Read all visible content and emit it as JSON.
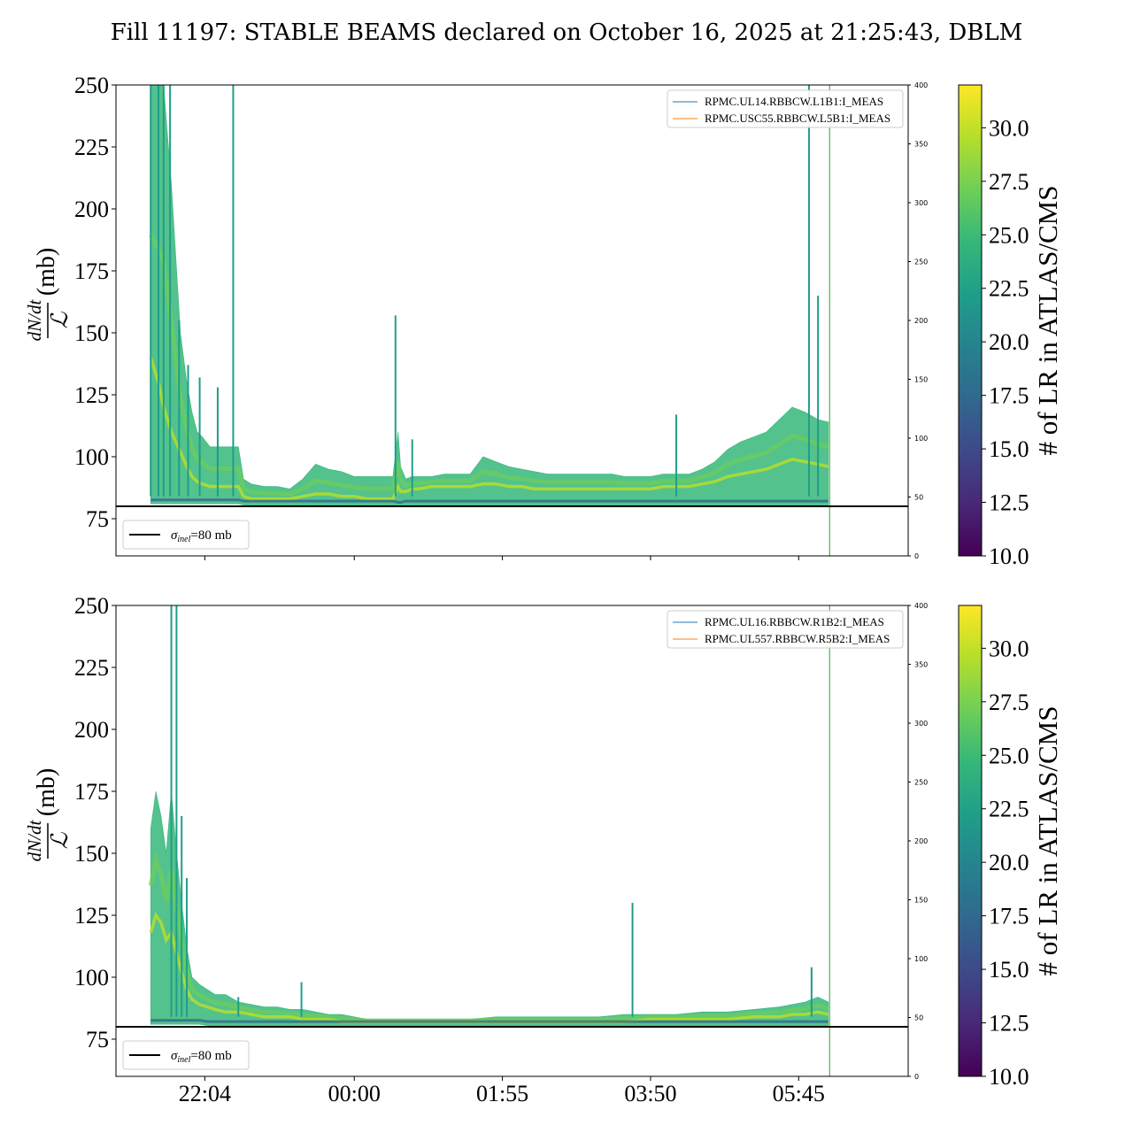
{
  "title": "Fill 11197: STABLE BEAMS declared on October 16, 2025 at 21:25:43, DBLM",
  "colors": {
    "reference_line": "#000000",
    "marker_line": "#2ca02c",
    "series_blue": "#1f77b4",
    "series_orange": "#ff7f0e",
    "viridis": [
      "#440154",
      "#482878",
      "#3e4989",
      "#31688e",
      "#26828e",
      "#1f9e89",
      "#35b779",
      "#6ece58",
      "#b5de2b",
      "#fde725"
    ]
  },
  "chart_data": [
    {
      "type": "line",
      "panel": "top",
      "ylabel_numerator": "dN/dt",
      "ylabel_denominator": "ℒ",
      "ylabel_unit": "(mb)",
      "ylim": [
        60,
        250
      ],
      "yticks": [
        75,
        100,
        125,
        150,
        175,
        200,
        225,
        250
      ],
      "y2lim": [
        0,
        400
      ],
      "y2ticks": [
        0,
        50,
        100,
        150,
        200,
        250,
        300,
        350,
        400
      ],
      "xlim_minutes": [
        -155,
        460
      ],
      "x_ticks": [
        {
          "label": "22:04",
          "minutes": -86
        },
        {
          "label": "00:00",
          "minutes": 30
        },
        {
          "label": "01:55",
          "minutes": 145
        },
        {
          "label": "03:50",
          "minutes": 260
        },
        {
          "label": "05:45",
          "minutes": 375
        }
      ],
      "show_xtick_labels": false,
      "reference": {
        "label_symbol": "σ",
        "label_sub": "inel",
        "label_value": "=80 mb",
        "y": 80
      },
      "marker_x_minutes": 399,
      "legend_placement": "upper right",
      "series": [
        {
          "name": "RPMC.UL14.RBBCW.L1B1:I_MEAS",
          "color": "#1f77b4"
        },
        {
          "name": "RPMC.USC55.RBBCW.L5B1:I_MEAS",
          "color": "#ff7f0e"
        }
      ],
      "band": {
        "x": [
          -128,
          -122,
          -118,
          -112,
          -105,
          -100,
          -96,
          -92,
          -88,
          -82,
          -76,
          -70,
          -64,
          -60,
          -56,
          -50,
          -40,
          -30,
          -20,
          -10,
          0,
          10,
          20,
          30,
          40,
          50,
          60,
          64,
          66,
          70,
          75,
          80,
          90,
          100,
          110,
          120,
          130,
          140,
          150,
          160,
          170,
          180,
          190,
          200,
          210,
          220,
          230,
          240,
          250,
          260,
          270,
          280,
          290,
          300,
          310,
          320,
          330,
          340,
          350,
          360,
          370,
          380,
          390,
          398
        ],
        "low": [
          81,
          81,
          81,
          81,
          81,
          81,
          81,
          81,
          81,
          81,
          81,
          81,
          81,
          81,
          80.5,
          80.5,
          80.5,
          80.5,
          80.5,
          80.5,
          80.5,
          80.5,
          80.5,
          80.5,
          80.5,
          80.5,
          80.5,
          80,
          80,
          80.5,
          80.5,
          80.5,
          80.5,
          80.5,
          80.5,
          80.5,
          80.5,
          80.5,
          80.5,
          80.5,
          80.5,
          80.5,
          80.5,
          80.5,
          80.5,
          80.5,
          80.5,
          80.5,
          80.5,
          80.5,
          80.5,
          80.5,
          80.5,
          80.5,
          80.5,
          80.5,
          80.5,
          80.5,
          80.5,
          80.5,
          80.5,
          80.5,
          80.5,
          80.5
        ],
        "high": [
          250,
          250,
          250,
          210,
          150,
          130,
          118,
          110,
          108,
          104,
          104,
          104,
          104,
          104,
          91,
          89,
          88,
          88,
          87,
          91,
          97,
          95,
          94,
          92,
          92,
          92,
          92,
          110,
          96,
          91,
          92,
          92,
          92,
          93,
          93,
          93,
          100,
          98,
          96,
          95,
          94,
          93,
          93,
          93,
          93,
          93,
          93,
          92,
          92,
          92,
          93,
          93,
          93,
          95,
          98,
          103,
          106,
          108,
          110,
          115,
          120,
          118,
          115,
          114
        ],
        "mid": [
          140,
          130,
          120,
          110,
          102,
          96,
          92,
          90,
          89,
          88,
          88,
          88,
          88,
          88,
          84,
          83,
          83,
          83,
          83,
          84,
          85,
          85,
          84,
          84,
          83,
          83,
          83,
          88,
          86,
          86,
          87,
          87,
          88,
          88,
          88,
          88,
          89,
          89,
          88,
          88,
          87,
          87,
          87,
          87,
          87,
          87,
          87,
          87,
          87,
          87,
          88,
          88,
          88,
          89,
          90,
          92,
          93,
          94,
          95,
          97,
          99,
          98,
          97,
          96
        ]
      },
      "spikes": [
        {
          "x": -128,
          "y": 250
        },
        {
          "x": -122,
          "y": 250
        },
        {
          "x": -118,
          "y": 250
        },
        {
          "x": -113,
          "y": 250
        },
        {
          "x": -106,
          "y": 155
        },
        {
          "x": -99,
          "y": 137
        },
        {
          "x": -90,
          "y": 132
        },
        {
          "x": -76,
          "y": 128
        },
        {
          "x": -64,
          "y": 250
        },
        {
          "x": 62,
          "y": 157
        },
        {
          "x": 75,
          "y": 107
        },
        {
          "x": 280,
          "y": 117
        },
        {
          "x": 383,
          "y": 250
        },
        {
          "x": 390,
          "y": 165
        }
      ]
    },
    {
      "type": "line",
      "panel": "bottom",
      "ylabel_numerator": "dN/dt",
      "ylabel_denominator": "ℒ",
      "ylabel_unit": "(mb)",
      "ylim": [
        60,
        250
      ],
      "yticks": [
        75,
        100,
        125,
        150,
        175,
        200,
        225,
        250
      ],
      "y2lim": [
        0,
        400
      ],
      "y2ticks": [
        0,
        50,
        100,
        150,
        200,
        250,
        300,
        350,
        400
      ],
      "xlim_minutes": [
        -155,
        460
      ],
      "x_ticks": [
        {
          "label": "22:04",
          "minutes": -86
        },
        {
          "label": "00:00",
          "minutes": 30
        },
        {
          "label": "01:55",
          "minutes": 145
        },
        {
          "label": "03:50",
          "minutes": 260
        },
        {
          "label": "05:45",
          "minutes": 375
        }
      ],
      "show_xtick_labels": true,
      "reference": {
        "label_symbol": "σ",
        "label_sub": "inel",
        "label_value": "=80 mb",
        "y": 80
      },
      "marker_x_minutes": 399,
      "legend_placement": "upper right",
      "series": [
        {
          "name": "RPMC.UL16.RBBCW.R1B2:I_MEAS",
          "color": "#1f77b4"
        },
        {
          "name": "RPMC.UL557.RBBCW.R5B2:I_MEAS",
          "color": "#ff7f0e"
        }
      ],
      "band": {
        "x": [
          -128,
          -124,
          -120,
          -116,
          -112,
          -108,
          -104,
          -100,
          -96,
          -90,
          -84,
          -78,
          -70,
          -60,
          -50,
          -40,
          -30,
          -20,
          -10,
          0,
          10,
          20,
          30,
          40,
          50,
          60,
          80,
          100,
          120,
          140,
          160,
          180,
          200,
          220,
          240,
          260,
          280,
          300,
          320,
          340,
          360,
          370,
          380,
          390,
          398
        ],
        "low": [
          81,
          81,
          81,
          81,
          81,
          81,
          81,
          81,
          81,
          81,
          80.5,
          80.5,
          80.5,
          80.5,
          80.5,
          80.5,
          80.5,
          80.5,
          80.5,
          80.5,
          80.5,
          80.5,
          80.5,
          80.5,
          80.5,
          80.5,
          80.5,
          80.5,
          80.5,
          80.5,
          80.5,
          80.5,
          80.5,
          80.5,
          80.5,
          80.5,
          80.5,
          80.5,
          80.5,
          80.5,
          80.5,
          80.5,
          80.5,
          80.5,
          80.5
        ],
        "high": [
          160,
          175,
          165,
          150,
          175,
          150,
          130,
          112,
          100,
          97,
          95,
          93,
          93,
          90,
          89,
          88,
          88,
          87,
          87,
          86,
          85,
          85,
          84,
          83,
          83,
          83,
          83,
          83,
          83,
          84,
          84,
          84,
          84,
          84,
          85,
          85,
          85,
          86,
          86,
          87,
          88,
          89,
          90,
          92,
          90
        ],
        "mid": [
          118,
          125,
          122,
          115,
          118,
          110,
          102,
          95,
          91,
          89,
          88,
          87,
          86,
          86,
          85,
          84,
          84,
          84,
          83,
          83,
          83,
          82,
          82,
          82,
          82,
          82,
          82,
          82,
          82,
          82,
          82,
          82,
          82,
          82,
          82,
          83,
          83,
          83,
          83,
          84,
          84,
          85,
          85,
          86,
          85
        ]
      },
      "spikes": [
        {
          "x": -112,
          "y": 250
        },
        {
          "x": -108,
          "y": 250
        },
        {
          "x": -104,
          "y": 165
        },
        {
          "x": -100,
          "y": 140
        },
        {
          "x": -60,
          "y": 92
        },
        {
          "x": -11,
          "y": 98
        },
        {
          "x": 246,
          "y": 130
        },
        {
          "x": 385,
          "y": 104
        }
      ]
    }
  ],
  "colorbar": {
    "label": "# of LR in ATLAS/CMS",
    "range": [
      10,
      32
    ],
    "ticks": [
      "10.0",
      "12.5",
      "15.0",
      "17.5",
      "20.0",
      "22.5",
      "25.0",
      "27.5",
      "30.0"
    ]
  }
}
